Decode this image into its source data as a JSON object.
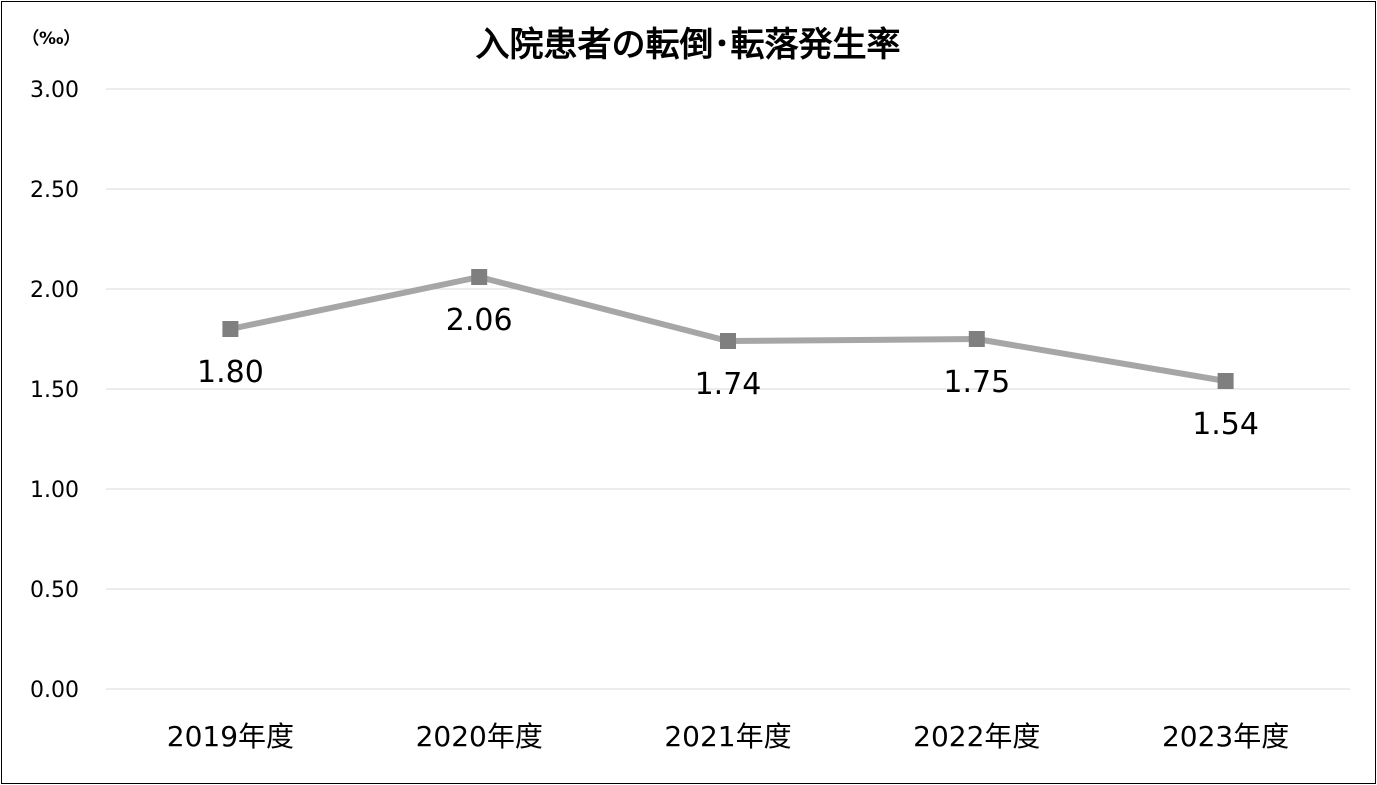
{
  "chart_data": {
    "type": "line",
    "title": "入院患者の転倒･転落発生率",
    "unit_label": "（‰）",
    "xlabel": "",
    "ylabel": "",
    "categories": [
      "2019年度",
      "2020年度",
      "2021年度",
      "2022年度",
      "2023年度"
    ],
    "series": [
      {
        "values": [
          1.8,
          2.06,
          1.74,
          1.75,
          1.54
        ],
        "labels": [
          "1.80",
          "2.06",
          "1.74",
          "1.75",
          "1.54"
        ],
        "color": "#a6a6a6",
        "marker_color": "#7f7f7f",
        "marker": "square"
      }
    ],
    "ylim": [
      0,
      3
    ],
    "yticks": [
      "0.00",
      "0.50",
      "1.00",
      "1.50",
      "2.00",
      "2.50",
      "3.00"
    ],
    "grid": true,
    "legend": "none"
  }
}
